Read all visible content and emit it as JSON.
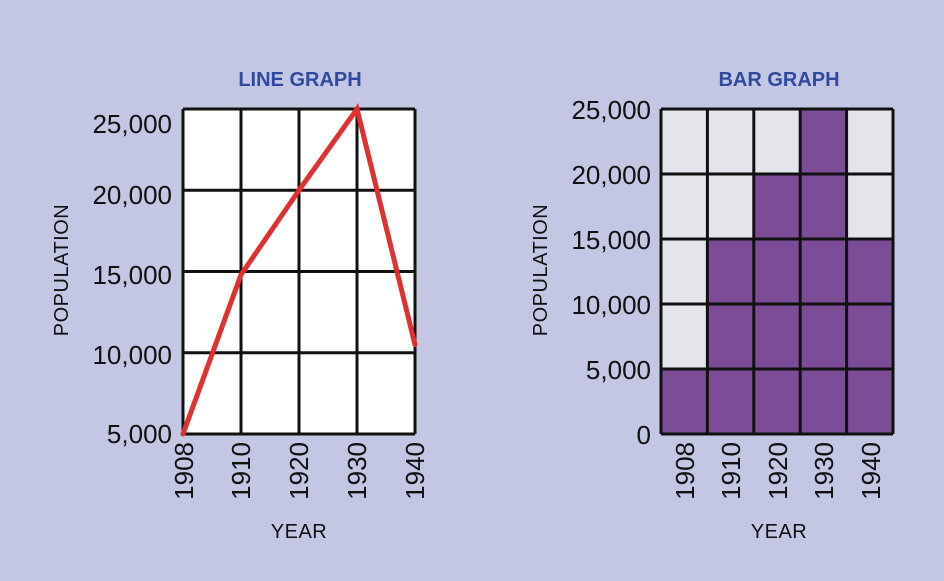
{
  "colors": {
    "background": "#c3c7e3",
    "title": "#3049a0",
    "grid": "#111111",
    "plot_fill": "#ffffff",
    "line": "#e03030",
    "bar_fill": "#7c4d96",
    "bar_empty": "#e4e5ea"
  },
  "chart_data": [
    {
      "type": "line",
      "title": "LINE GRAPH",
      "xlabel": "YEAR",
      "ylabel": "POPULATION",
      "categories": [
        "1908",
        "1910",
        "1920",
        "1930",
        "1940"
      ],
      "yticks": [
        "25,000",
        "20,000",
        "15,000",
        "10,000",
        "5,000"
      ],
      "ylim": [
        5000,
        25000
      ],
      "values": [
        5000,
        14800,
        20000,
        25000,
        10500
      ],
      "grid": true
    },
    {
      "type": "bar",
      "title": "BAR GRAPH",
      "xlabel": "YEAR",
      "ylabel": "POPULATION",
      "categories": [
        "1908",
        "1910",
        "1920",
        "1930",
        "1940"
      ],
      "yticks": [
        "25,000",
        "20,000",
        "15,000",
        "10,000",
        "5,000",
        "0"
      ],
      "ylim": [
        0,
        25000
      ],
      "values": [
        5000,
        15000,
        20000,
        25000,
        15000
      ],
      "grid": true
    }
  ]
}
